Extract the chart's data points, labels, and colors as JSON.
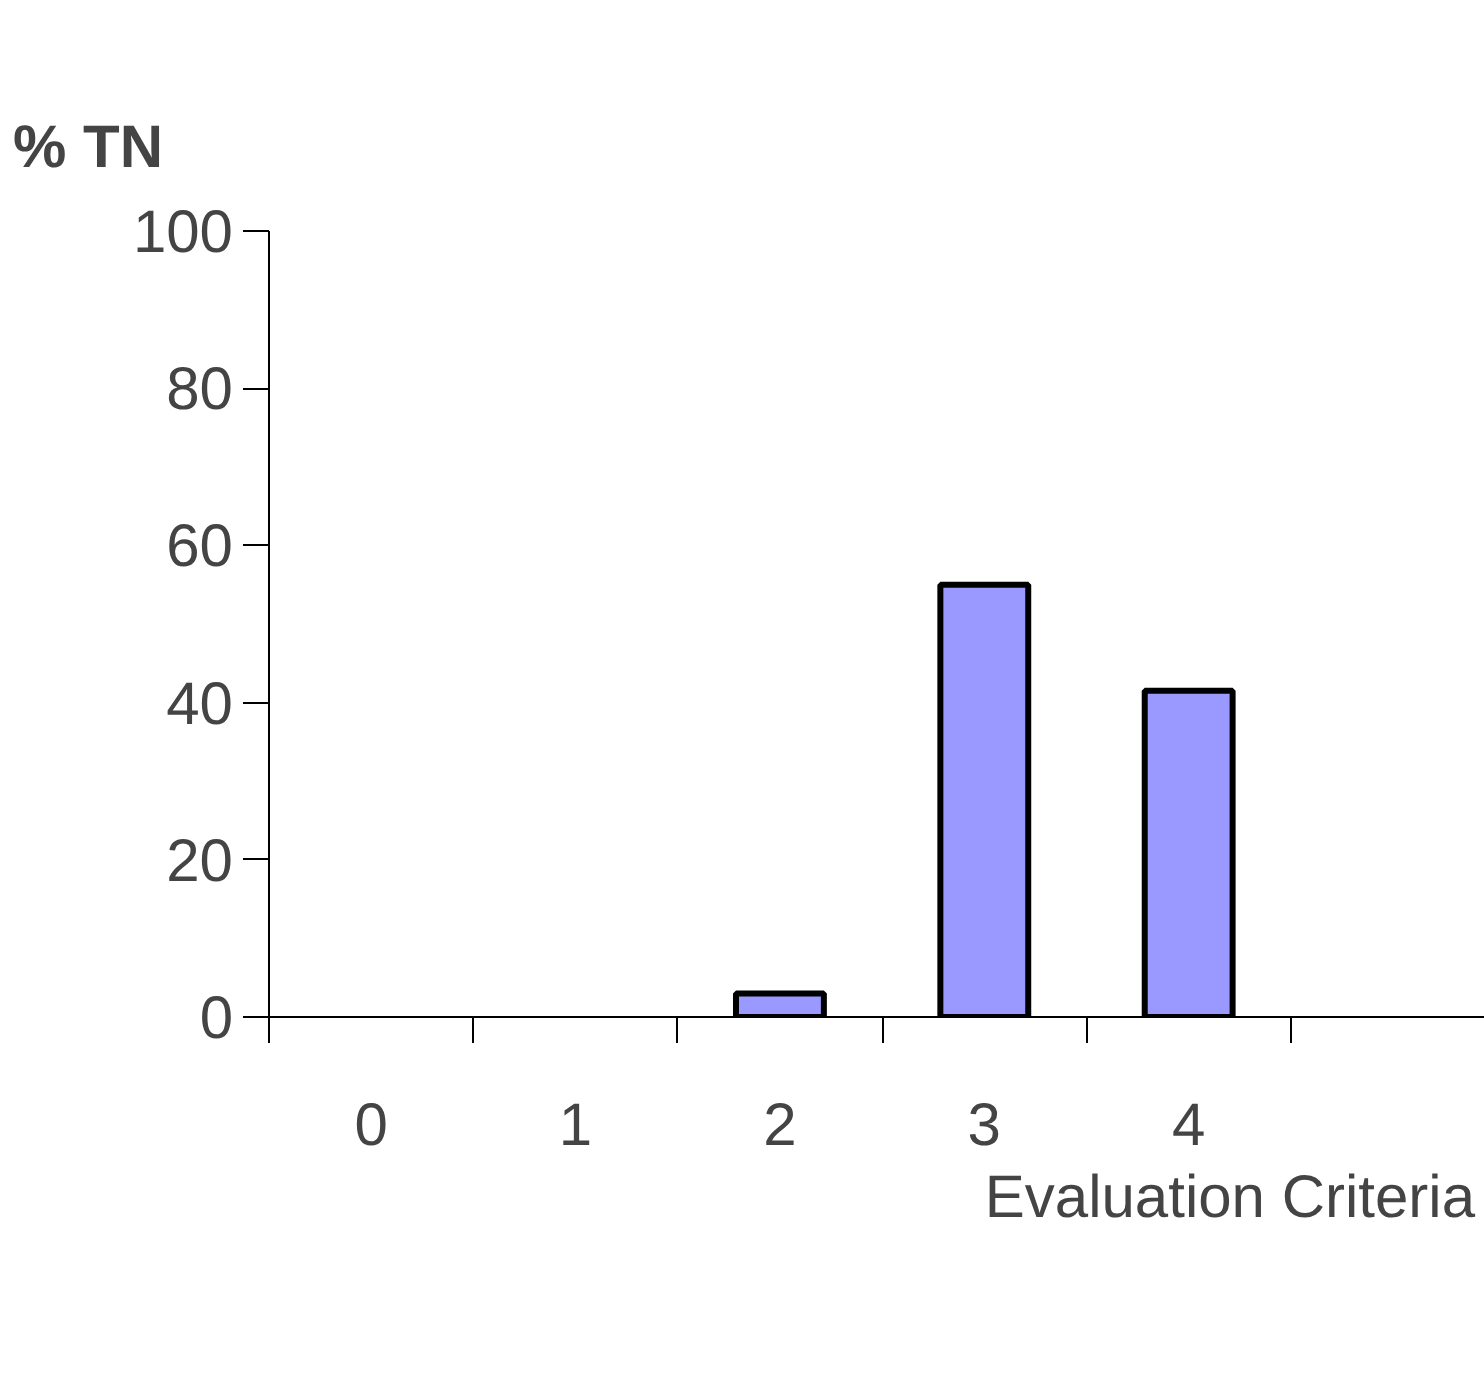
{
  "chart_data": {
    "type": "bar",
    "ylabel": "% TN",
    "xlabel": "Evaluation Criteria",
    "categories": [
      "0",
      "1",
      "2",
      "3",
      "4",
      null
    ],
    "values": [
      0,
      0,
      3,
      55,
      41.5,
      null
    ],
    "color": "#9999ff",
    "ylim": [
      0,
      100
    ],
    "yticks": [
      0,
      20,
      40,
      60,
      80,
      100
    ],
    "grid": false
  }
}
